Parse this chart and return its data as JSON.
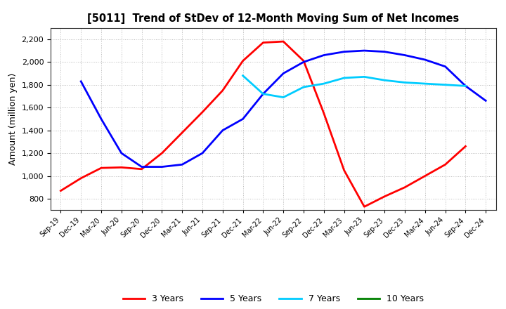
{
  "title": "[5011]  Trend of StDev of 12-Month Moving Sum of Net Incomes",
  "ylabel": "Amount (million yen)",
  "background_color": "#ffffff",
  "grid_color": "#bbbbbb",
  "ylim": [
    700,
    2300
  ],
  "yticks": [
    800,
    1000,
    1200,
    1400,
    1600,
    1800,
    2000,
    2200
  ],
  "x_labels": [
    "Sep-19",
    "Dec-19",
    "Mar-20",
    "Jun-20",
    "Sep-20",
    "Dec-20",
    "Mar-21",
    "Jun-21",
    "Sep-21",
    "Dec-21",
    "Mar-22",
    "Jun-22",
    "Sep-22",
    "Dec-22",
    "Mar-23",
    "Jun-23",
    "Sep-23",
    "Dec-23",
    "Mar-24",
    "Jun-24",
    "Sep-24",
    "Dec-24"
  ],
  "series": [
    {
      "name": "3 Years",
      "color": "#ff0000",
      "x": [
        "Sep-19",
        "Dec-19",
        "Mar-20",
        "Jun-20",
        "Sep-20",
        "Dec-20",
        "Mar-21",
        "Jun-21",
        "Sep-21",
        "Dec-21",
        "Mar-22",
        "Jun-22",
        "Sep-22",
        "Dec-22",
        "Mar-23",
        "Jun-23",
        "Sep-23",
        "Dec-23",
        "Mar-24",
        "Jun-24",
        "Sep-24"
      ],
      "y": [
        870,
        980,
        1070,
        1075,
        1060,
        1200,
        1380,
        1560,
        1750,
        2010,
        2170,
        2180,
        2010,
        1550,
        1050,
        730,
        820,
        900,
        1000,
        1100,
        1260
      ]
    },
    {
      "name": "5 Years",
      "color": "#0000ff",
      "x": [
        "Dec-19",
        "Mar-20",
        "Jun-20",
        "Sep-20",
        "Dec-20",
        "Mar-21",
        "Jun-21",
        "Sep-21",
        "Dec-21",
        "Mar-22",
        "Jun-22",
        "Sep-22",
        "Dec-22",
        "Mar-23",
        "Jun-23",
        "Sep-23",
        "Dec-23",
        "Mar-24",
        "Jun-24",
        "Sep-24",
        "Dec-24"
      ],
      "y": [
        1830,
        1500,
        1200,
        1080,
        1080,
        1100,
        1200,
        1400,
        1500,
        1720,
        1900,
        2000,
        2060,
        2090,
        2100,
        2090,
        2060,
        2020,
        1960,
        1790,
        1660
      ]
    },
    {
      "name": "7 Years",
      "color": "#00ccff",
      "x": [
        "Dec-21",
        "Mar-22",
        "Jun-22",
        "Sep-22",
        "Dec-22",
        "Mar-23",
        "Jun-23",
        "Sep-23",
        "Dec-23",
        "Mar-24",
        "Jun-24",
        "Sep-24"
      ],
      "y": [
        1880,
        1720,
        1690,
        1780,
        1810,
        1860,
        1870,
        1840,
        1820,
        1810,
        1800,
        1790
      ]
    },
    {
      "name": "10 Years",
      "color": "#008000",
      "x": [],
      "y": []
    }
  ],
  "legend_labels": [
    "3 Years",
    "5 Years",
    "7 Years",
    "10 Years"
  ],
  "legend_colors": [
    "#ff0000",
    "#0000ff",
    "#00ccff",
    "#008000"
  ]
}
